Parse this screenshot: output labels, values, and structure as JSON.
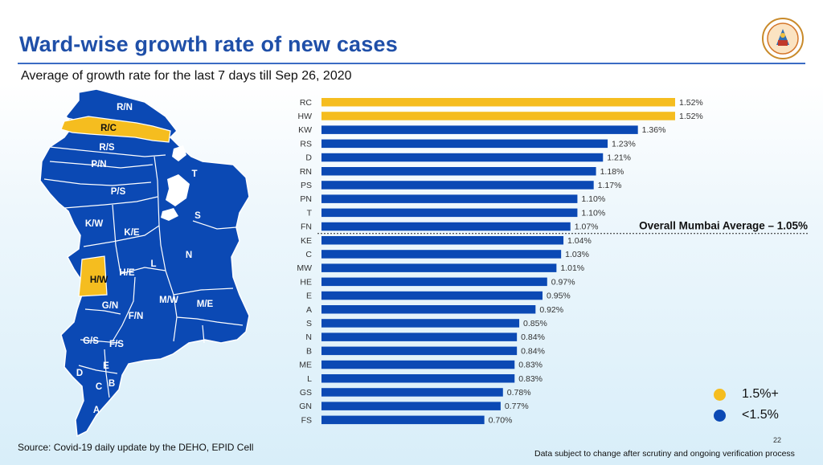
{
  "header": {
    "title": "Ward-wise growth rate of new cases",
    "subtitle": "Average of growth rate for the last 7 days till Sep 26, 2020"
  },
  "colors": {
    "above_threshold": "#f5bd1f",
    "below_threshold": "#0b49b4",
    "title": "#1f4fa8"
  },
  "chart_data": {
    "type": "bar",
    "orientation": "horizontal",
    "title": "Ward-wise growth rate of new cases",
    "subtitle": "Average of growth rate for the last 7 days till Sep 26, 2020",
    "unit": "%",
    "categories": [
      "RC",
      "HW",
      "KW",
      "RS",
      "D",
      "RN",
      "PS",
      "PN",
      "T",
      "FN",
      "KE",
      "C",
      "MW",
      "HE",
      "E",
      "A",
      "S",
      "N",
      "B",
      "ME",
      "L",
      "GS",
      "GN",
      "FS"
    ],
    "values": [
      1.52,
      1.52,
      1.36,
      1.23,
      1.21,
      1.18,
      1.17,
      1.1,
      1.1,
      1.07,
      1.04,
      1.03,
      1.01,
      0.97,
      0.95,
      0.92,
      0.85,
      0.84,
      0.84,
      0.83,
      0.83,
      0.78,
      0.77,
      0.7
    ],
    "labels": [
      "1.52%",
      "1.52%",
      "1.36%",
      "1.23%",
      "1.21%",
      "1.18%",
      "1.17%",
      "1.10%",
      "1.10%",
      "1.07%",
      "1.04%",
      "1.03%",
      "1.01%",
      "0.97%",
      "0.95%",
      "0.92%",
      "0.85%",
      "0.84%",
      "0.84%",
      "0.83%",
      "0.83%",
      "0.78%",
      "0.77%",
      "0.70%"
    ],
    "highlight_threshold": 1.5,
    "xlim": [
      0,
      1.52
    ],
    "grid": false,
    "reference_line": {
      "label": "Overall Mumbai Average – 1.05%",
      "value": 1.05,
      "after_category": "FN"
    }
  },
  "map": {
    "highlighted_wards": [
      "R/C",
      "H/W"
    ],
    "ward_labels": [
      "R/N",
      "R/C",
      "R/S",
      "P/N",
      "P/S",
      "T",
      "S",
      "K/W",
      "K/E",
      "N",
      "L",
      "H/W",
      "H/E",
      "G/N",
      "M/W",
      "M/E",
      "F/N",
      "G/S",
      "F/S",
      "E",
      "D",
      "B",
      "C",
      "A"
    ]
  },
  "legend": [
    {
      "label": "1.5%+",
      "color": "#f5bd1f"
    },
    {
      "label": "<1.5%",
      "color": "#0b49b4"
    }
  ],
  "footer": {
    "source": "Source: Covid-19 daily update by the DEHO, EPID Cell",
    "page_number": "22",
    "disclaimer": "Data subject to change after scrutiny and ongoing verification process"
  }
}
